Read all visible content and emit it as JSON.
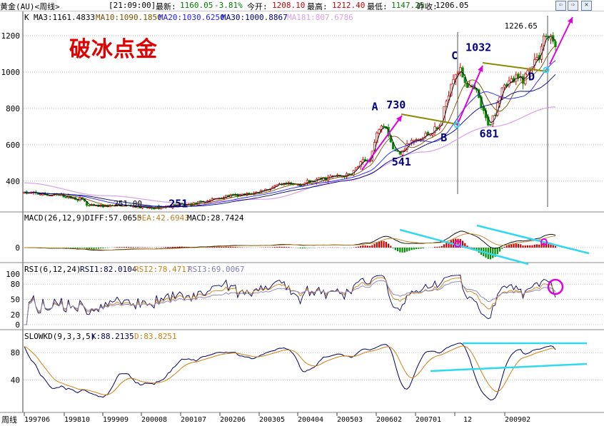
{
  "header": {
    "instrument": "黄金(AU)<周线>",
    "time": "[21:09:00]",
    "latest_label": "最新:",
    "latest": "1160.05",
    "change": "-3.81%",
    "open_label": "今开:",
    "open": "1208.10",
    "high_label": "最高:",
    "high": "1212.40",
    "low_label": "最低:",
    "low": "1147.25",
    "prev_label": "昨收:",
    "prev": "1206.05",
    "buttons": [
      "⇦",
      "⇨",
      "✕"
    ]
  },
  "annotation_title": "破冰点金",
  "bottom_label": "周线",
  "colors": {
    "up": "#d00000",
    "down": "#009000",
    "ma3": "#000000",
    "ma10": "#7a5000",
    "ma20": "#2020ff",
    "ma30": "#000080",
    "ma181": "#d8a0e8",
    "diff": "#000000",
    "dea": "#c08020",
    "arrow": "#e000e0",
    "trend": "#30d8f0",
    "neck": "#8a8a00",
    "rsi1": "#000060",
    "rsi2": "#d08010",
    "rsi3": "#8080c0"
  },
  "chart_data": [
    {
      "type": "candlestick",
      "panel": "price",
      "label": "K",
      "legend": [
        {
          "name": "MA3",
          "text": "MA3:1161.4833"
        },
        {
          "name": "MA10",
          "text": "MA10:1090.1850"
        },
        {
          "name": "MA20",
          "text": "MA20:1030.6250"
        },
        {
          "name": "MA30",
          "text": "MA30:1000.8867"
        },
        {
          "name": "MA181",
          "text": "MA181:807.6786"
        }
      ],
      "y_ticks": [
        400,
        600,
        800,
        1000,
        1200
      ],
      "ylim": [
        250,
        1310
      ],
      "x_ticks": [
        "199706",
        "199810",
        "199909",
        "200008",
        "200107",
        "200206",
        "200305",
        "200404",
        "200503",
        "200602",
        "200701",
        "12",
        "200902"
      ],
      "key_points": [
        {
          "t": 0.12,
          "v": 262
        },
        {
          "t": 0.19,
          "v": 265
        },
        {
          "t": 0.235,
          "v": 252
        },
        {
          "t": 0.3,
          "v": 270
        },
        {
          "t": 0.4,
          "v": 320
        },
        {
          "t": 0.5,
          "v": 380
        },
        {
          "t": 0.605,
          "v": 430
        },
        {
          "t": 0.645,
          "v": 510
        },
        {
          "t": 0.675,
          "v": 725
        },
        {
          "t": 0.7,
          "v": 560
        },
        {
          "t": 0.735,
          "v": 620
        },
        {
          "t": 0.775,
          "v": 680
        },
        {
          "t": 0.815,
          "v": 1010
        },
        {
          "t": 0.845,
          "v": 900
        },
        {
          "t": 0.875,
          "v": 720
        },
        {
          "t": 0.905,
          "v": 940
        },
        {
          "t": 0.935,
          "v": 960
        },
        {
          "t": 0.965,
          "v": 1070
        },
        {
          "t": 0.98,
          "v": 1200
        },
        {
          "t": 1.0,
          "v": 1160
        }
      ],
      "ma181_points": [
        {
          "t": 0.0,
          "v": 390
        },
        {
          "t": 0.15,
          "v": 320
        },
        {
          "t": 0.3,
          "v": 280
        },
        {
          "t": 0.45,
          "v": 300
        },
        {
          "t": 0.6,
          "v": 400
        },
        {
          "t": 0.75,
          "v": 560
        },
        {
          "t": 0.88,
          "v": 700
        },
        {
          "t": 1.0,
          "v": 808
        }
      ],
      "labels": [
        {
          "text": "251.00",
          "t": 0.195,
          "v": 262
        },
        {
          "text": "251",
          "t": 0.29,
          "v": 255
        },
        {
          "text": "A",
          "t": 0.66,
          "v": 790
        },
        {
          "text": "730",
          "t": 0.7,
          "v": 800
        },
        {
          "text": "541",
          "t": 0.71,
          "v": 485
        },
        {
          "text": "B",
          "t": 0.79,
          "v": 620
        },
        {
          "text": "C",
          "t": 0.81,
          "v": 1070
        },
        {
          "text": "1032",
          "t": 0.855,
          "v": 1115
        },
        {
          "text": "681",
          "t": 0.875,
          "v": 640
        },
        {
          "text": "1226.65",
          "t": 0.935,
          "v": 1240
        },
        {
          "text": "D",
          "t": 0.955,
          "v": 955
        }
      ]
    },
    {
      "type": "line",
      "panel": "macd",
      "label": "MACD(26,12,9)",
      "legend": [
        {
          "name": "DIFF",
          "text": "DIFF:57.0655"
        },
        {
          "name": "DEA",
          "text": "DEA:42.6943"
        },
        {
          "name": "MACD",
          "text": "MACD:28.7424"
        }
      ],
      "y_ticks": [
        0
      ]
    },
    {
      "type": "line",
      "panel": "rsi",
      "label": "RSI(6,12,24)",
      "legend": [
        {
          "name": "RSI1",
          "text": "RSI1:82.0104"
        },
        {
          "name": "RSI2",
          "text": "RSI2:78.4717"
        },
        {
          "name": "RSI3",
          "text": "RSI3:69.0067"
        }
      ],
      "y_ticks": [
        100,
        80,
        50,
        20,
        0
      ],
      "ylim": [
        0,
        100
      ]
    },
    {
      "type": "line",
      "panel": "slowkd",
      "label": "SLOWKD(9,3,3,5)",
      "legend": [
        {
          "name": "K",
          "text": "K:88.2135"
        },
        {
          "name": "D",
          "text": "D:83.8251"
        }
      ],
      "y_ticks": [
        80,
        40
      ],
      "ylim": [
        0,
        100
      ]
    }
  ]
}
